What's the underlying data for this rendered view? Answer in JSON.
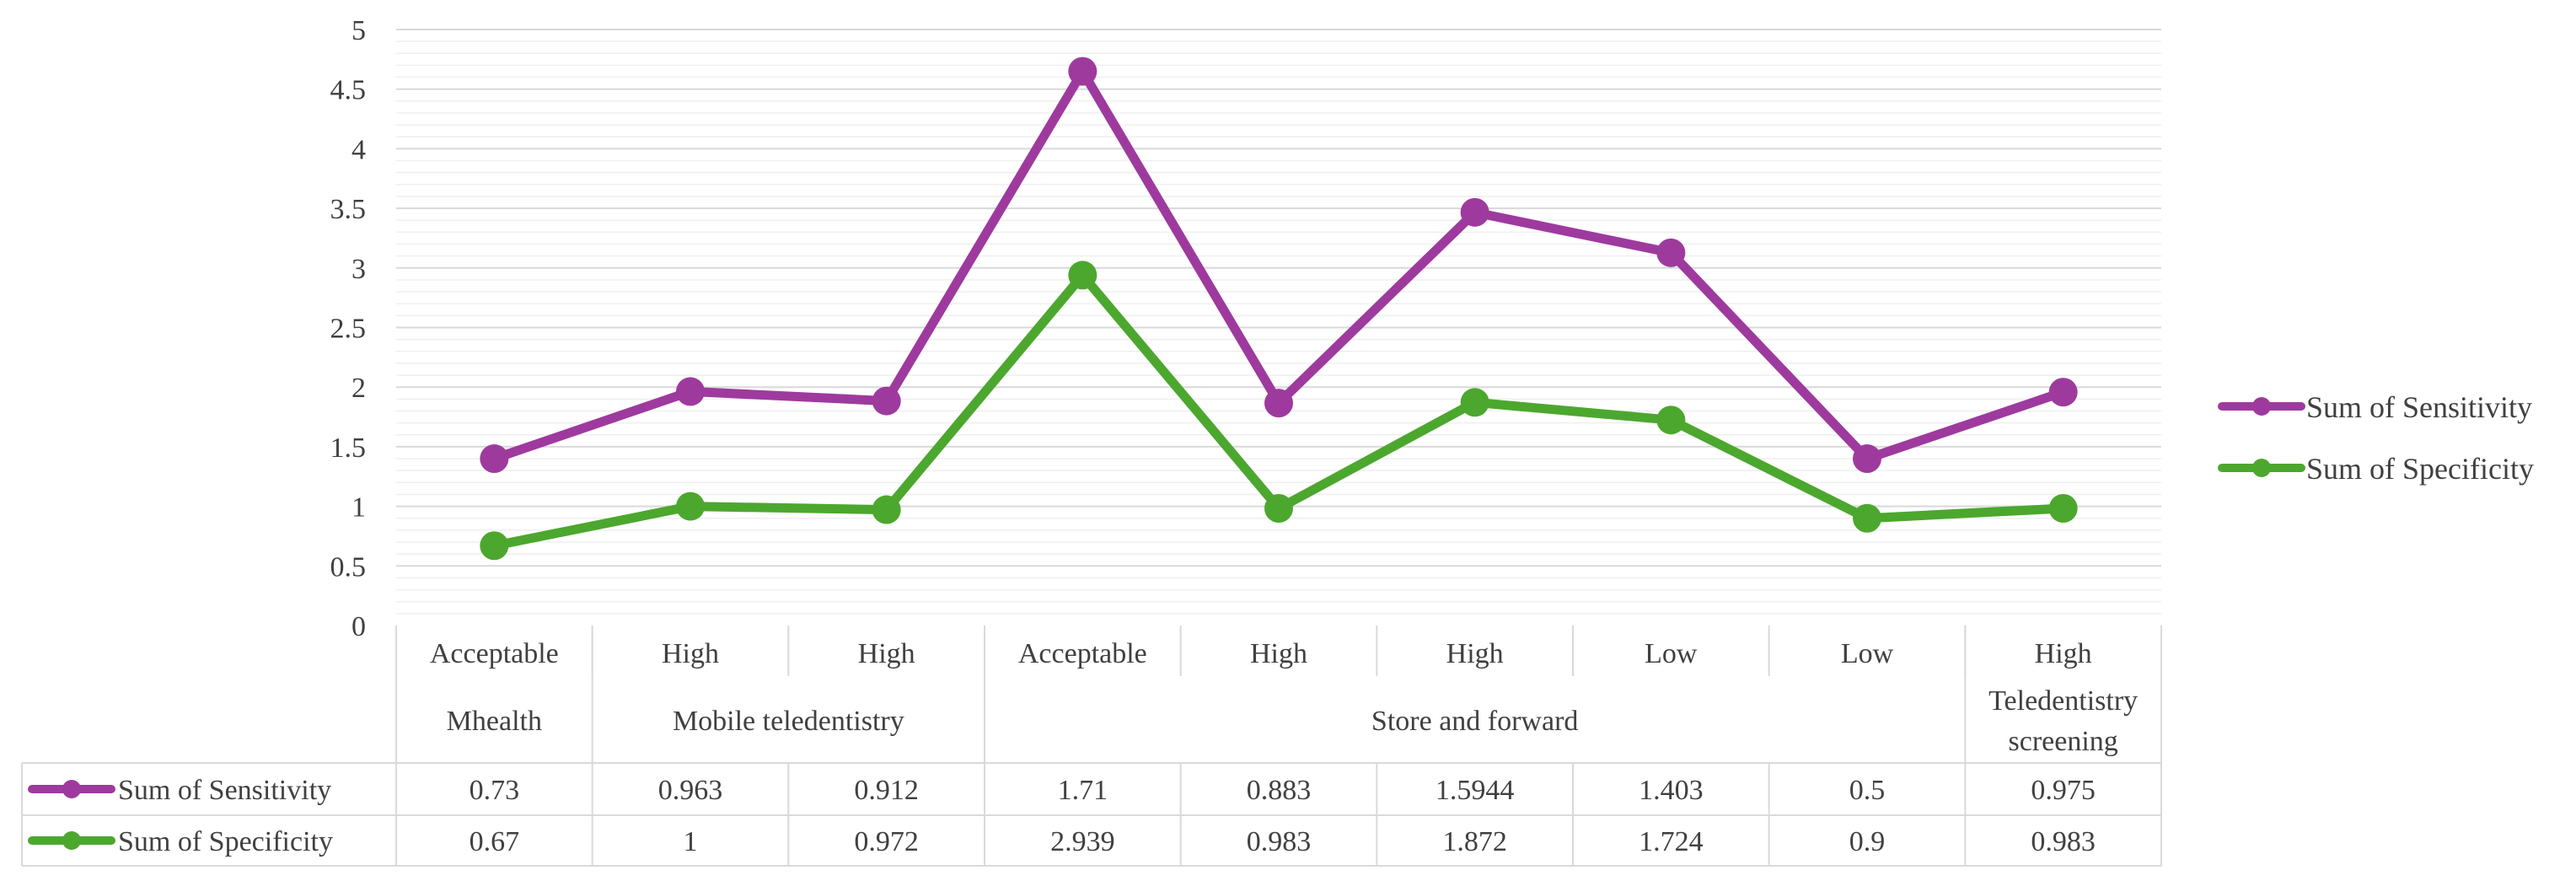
{
  "chart_data": {
    "type": "line",
    "categories": [
      {
        "label": "Acceptable",
        "group": "Mhealth"
      },
      {
        "label": "High",
        "group": "Mobile teledentistry"
      },
      {
        "label": "High",
        "group": "Mobile teledentistry"
      },
      {
        "label": "Acceptable",
        "group": "Store and forward"
      },
      {
        "label": "High",
        "group": "Store and forward"
      },
      {
        "label": "High",
        "group": "Store and forward"
      },
      {
        "label": "Low",
        "group": "Store and forward"
      },
      {
        "label": "Low",
        "group": "Store and forward"
      },
      {
        "label": "High",
        "group": "Teledentistry screening"
      }
    ],
    "groups": [
      {
        "label": "Mhealth",
        "span": 1
      },
      {
        "label": "Mobile teledentistry",
        "span": 2
      },
      {
        "label": "Store and forward",
        "span": 5
      },
      {
        "label": "Teledentistry screening",
        "span": 1
      }
    ],
    "stacked": true,
    "series": [
      {
        "name": "Sum of Sensitivity",
        "color": "#9e3a9e",
        "values": [
          0.73,
          0.963,
          0.912,
          1.71,
          0.883,
          1.5944,
          1.403,
          0.5,
          0.975
        ],
        "value_labels": [
          "0.73",
          "0.963",
          "0.912",
          "1.71",
          "0.883",
          "1.5944",
          "1.403",
          "0.5",
          "0.975"
        ]
      },
      {
        "name": "Sum of Specificity",
        "color": "#4ca72e",
        "values": [
          0.67,
          1,
          0.972,
          2.939,
          0.983,
          1.872,
          1.724,
          0.9,
          0.983
        ],
        "value_labels": [
          "0.67",
          "1",
          "0.972",
          "2.939",
          "0.983",
          "1.872",
          "1.724",
          "0.9",
          "0.983"
        ]
      }
    ],
    "yticks": [
      "0",
      "0.5",
      "1",
      "1.5",
      "2",
      "2.5",
      "3",
      "3.5",
      "4",
      "4.5",
      "5"
    ],
    "ylim": [
      0,
      5
    ],
    "grid": true,
    "legend": "right",
    "data_table": true
  }
}
